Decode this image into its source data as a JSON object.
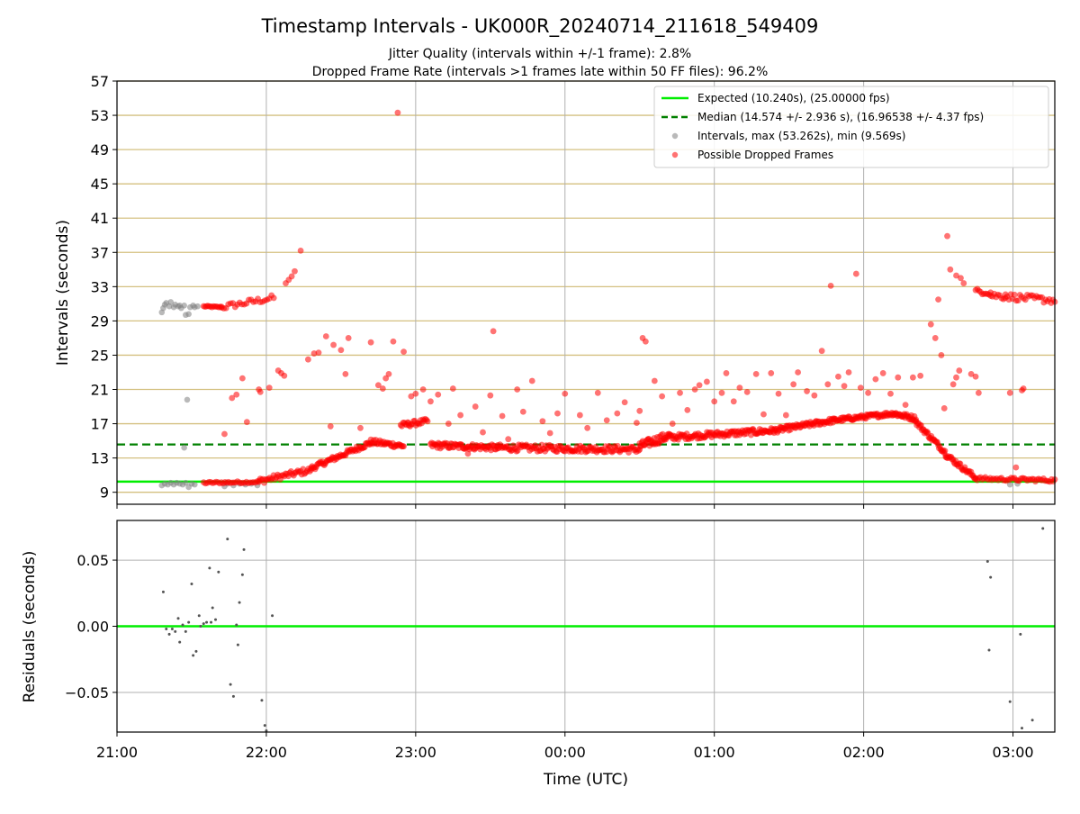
{
  "figure": {
    "title": "Timestamp Intervals - UK000R_20240714_211618_549409",
    "subtitle_line1": "Jitter Quality (intervals within +/-1 frame): 2.8%",
    "subtitle_line2": "Dropped Frame Rate (intervals >1 frames late within 50 FF files): 96.2%",
    "xlabel": "Time (UTC)"
  },
  "colors": {
    "expected": "#00ee00",
    "median": "#008000",
    "intervals": "#808080",
    "dropped": "#ff0000",
    "hgrid_top": "#d4c080",
    "grid": "#b0b0b0",
    "residual_points": "#555555"
  },
  "chart_data": [
    {
      "type": "scatter",
      "panel": "top",
      "ylabel": "Intervals (seconds)",
      "ylim": [
        7.6,
        57
      ],
      "yticks": [
        9,
        13,
        17,
        21,
        25,
        29,
        33,
        37,
        41,
        45,
        49,
        53,
        57
      ],
      "xlim_hours": [
        21.0,
        27.28
      ],
      "xticks_hours": [
        21,
        22,
        23,
        24,
        25,
        26,
        27
      ],
      "xtick_labels": [
        "21:00",
        "22:00",
        "23:00",
        "00:00",
        "01:00",
        "02:00",
        "03:00"
      ],
      "grid": "both",
      "legend_position": "upper right",
      "legend": {
        "expected": "Expected (10.240s), (25.00000 fps)",
        "median": "Median (14.574 +/- 2.936 s), (16.96538 +/- 4.37 fps)",
        "intervals": "Intervals, max (53.262s), min (9.569s)",
        "dropped": "Possible Dropped Frames"
      },
      "expected_line": 10.24,
      "median_line": 14.574,
      "intervals_gray": [
        [
          21.3,
          30.0
        ],
        [
          21.31,
          30.5
        ],
        [
          21.32,
          30.9
        ],
        [
          21.33,
          31.1
        ],
        [
          21.35,
          30.7
        ],
        [
          21.36,
          31.2
        ],
        [
          21.38,
          30.6
        ],
        [
          21.39,
          30.9
        ],
        [
          21.41,
          30.7
        ],
        [
          21.42,
          30.8
        ],
        [
          21.43,
          30.5
        ],
        [
          21.45,
          30.8
        ],
        [
          21.46,
          29.7
        ],
        [
          21.48,
          29.8
        ],
        [
          21.49,
          30.6
        ],
        [
          21.51,
          30.8
        ],
        [
          21.52,
          30.6
        ],
        [
          21.54,
          30.7
        ],
        [
          21.47,
          19.8
        ],
        [
          21.45,
          14.2
        ],
        [
          21.3,
          9.8
        ],
        [
          21.32,
          10.0
        ],
        [
          21.34,
          9.9
        ],
        [
          21.36,
          10.1
        ],
        [
          21.38,
          9.9
        ],
        [
          21.4,
          10.1
        ],
        [
          21.42,
          10.0
        ],
        [
          21.44,
          9.9
        ],
        [
          21.46,
          10.1
        ],
        [
          21.48,
          9.6
        ],
        [
          21.5,
          10.0
        ],
        [
          21.52,
          9.9
        ],
        [
          21.72,
          9.7
        ],
        [
          21.74,
          10.0
        ],
        [
          21.78,
          9.8
        ],
        [
          21.82,
          10.0
        ],
        [
          21.86,
          9.9
        ],
        [
          21.9,
          10.0
        ],
        [
          21.94,
          9.8
        ],
        [
          26.98,
          9.9
        ],
        [
          27.03,
          10.0
        ]
      ],
      "dropped_series": [
        {
          "t0": 21.58,
          "t1": 21.7,
          "y0": 30.7,
          "y1": 30.6,
          "n": 14,
          "jitter": 0.08
        },
        {
          "t0": 21.7,
          "t1": 22.05,
          "y0": 30.6,
          "y1": 31.7,
          "n": 24,
          "jitter": 0.35
        },
        {
          "t0": 21.58,
          "t1": 21.95,
          "y0": 10.1,
          "y1": 10.2,
          "n": 32,
          "jitter": 0.12
        },
        {
          "t0": 21.95,
          "t1": 22.3,
          "y0": 10.3,
          "y1": 11.6,
          "n": 40,
          "jitter": 0.35
        },
        {
          "t0": 22.3,
          "t1": 22.7,
          "y0": 11.8,
          "y1": 14.8,
          "n": 60,
          "jitter": 0.3
        },
        {
          "t0": 22.7,
          "t1": 22.92,
          "y0": 14.9,
          "y1": 14.4,
          "n": 34,
          "jitter": 0.3
        },
        {
          "t0": 22.9,
          "t1": 23.08,
          "y0": 16.8,
          "y1": 17.3,
          "n": 24,
          "jitter": 0.3
        },
        {
          "t0": 23.1,
          "t1": 23.55,
          "y0": 14.5,
          "y1": 14.2,
          "n": 70,
          "jitter": 0.35
        },
        {
          "t0": 23.55,
          "t1": 24.5,
          "y0": 14.2,
          "y1": 14.0,
          "n": 130,
          "jitter": 0.4
        },
        {
          "t0": 24.5,
          "t1": 24.7,
          "y0": 14.4,
          "y1": 15.6,
          "n": 40,
          "jitter": 0.5
        },
        {
          "t0": 24.7,
          "t1": 25.4,
          "y0": 15.4,
          "y1": 16.2,
          "n": 110,
          "jitter": 0.35
        },
        {
          "t0": 25.4,
          "t1": 25.8,
          "y0": 16.2,
          "y1": 17.4,
          "n": 70,
          "jitter": 0.3
        },
        {
          "t0": 25.8,
          "t1": 26.2,
          "y0": 17.4,
          "y1": 18.2,
          "n": 70,
          "jitter": 0.25
        },
        {
          "t0": 26.2,
          "t1": 26.35,
          "y0": 18.2,
          "y1": 17.6,
          "n": 30,
          "jitter": 0.3
        },
        {
          "t0": 26.35,
          "t1": 26.55,
          "y0": 17.2,
          "y1": 13.6,
          "n": 36,
          "jitter": 0.3
        },
        {
          "t0": 26.55,
          "t1": 26.75,
          "y0": 13.4,
          "y1": 10.7,
          "n": 34,
          "jitter": 0.3
        },
        {
          "t0": 26.75,
          "t1": 27.28,
          "y0": 10.6,
          "y1": 10.4,
          "n": 50,
          "jitter": 0.2
        },
        {
          "t0": 26.75,
          "t1": 26.85,
          "y0": 32.5,
          "y1": 32.3,
          "n": 10,
          "jitter": 0.3
        },
        {
          "t0": 26.85,
          "t1": 27.28,
          "y0": 32.0,
          "y1": 31.4,
          "n": 36,
          "jitter": 0.4
        }
      ],
      "dropped_points": [
        [
          21.72,
          15.8
        ],
        [
          21.77,
          20.0
        ],
        [
          21.8,
          20.4
        ],
        [
          21.84,
          22.3
        ],
        [
          21.87,
          17.2
        ],
        [
          21.95,
          21.0
        ],
        [
          21.96,
          20.7
        ],
        [
          22.02,
          21.2
        ],
        [
          22.08,
          23.2
        ],
        [
          22.1,
          22.9
        ],
        [
          22.12,
          22.6
        ],
        [
          22.13,
          33.4
        ],
        [
          22.15,
          33.8
        ],
        [
          22.17,
          34.2
        ],
        [
          22.19,
          34.8
        ],
        [
          22.23,
          37.2
        ],
        [
          22.28,
          24.5
        ],
        [
          22.32,
          25.2
        ],
        [
          22.35,
          25.3
        ],
        [
          22.4,
          27.2
        ],
        [
          22.43,
          16.7
        ],
        [
          22.45,
          26.2
        ],
        [
          22.5,
          25.6
        ],
        [
          22.53,
          22.8
        ],
        [
          22.55,
          27.0
        ],
        [
          22.63,
          16.5
        ],
        [
          22.7,
          26.5
        ],
        [
          22.75,
          21.5
        ],
        [
          22.8,
          22.3
        ],
        [
          22.78,
          21.1
        ],
        [
          22.82,
          22.8
        ],
        [
          22.85,
          26.6
        ],
        [
          22.88,
          53.3
        ],
        [
          22.92,
          25.4
        ],
        [
          22.95,
          17.1
        ],
        [
          22.97,
          20.2
        ],
        [
          23.0,
          20.5
        ],
        [
          23.05,
          21.0
        ],
        [
          23.1,
          19.6
        ],
        [
          23.15,
          20.4
        ],
        [
          23.22,
          17.0
        ],
        [
          23.25,
          21.1
        ],
        [
          23.3,
          18.0
        ],
        [
          23.35,
          13.5
        ],
        [
          23.4,
          19.0
        ],
        [
          23.45,
          16.0
        ],
        [
          23.5,
          20.3
        ],
        [
          23.52,
          27.8
        ],
        [
          23.58,
          17.9
        ],
        [
          23.62,
          15.2
        ],
        [
          23.68,
          21.0
        ],
        [
          23.72,
          18.4
        ],
        [
          23.78,
          22.0
        ],
        [
          23.85,
          17.3
        ],
        [
          23.9,
          15.9
        ],
        [
          23.95,
          18.2
        ],
        [
          24.0,
          20.5
        ],
        [
          24.05,
          13.8
        ],
        [
          24.1,
          18.0
        ],
        [
          24.15,
          16.5
        ],
        [
          24.22,
          20.6
        ],
        [
          24.28,
          17.4
        ],
        [
          24.35,
          18.2
        ],
        [
          24.4,
          19.5
        ],
        [
          24.48,
          17.1
        ],
        [
          24.5,
          18.5
        ],
        [
          24.52,
          27.0
        ],
        [
          24.54,
          26.6
        ],
        [
          24.6,
          22.0
        ],
        [
          24.65,
          20.2
        ],
        [
          24.72,
          17.0
        ],
        [
          24.77,
          20.6
        ],
        [
          24.82,
          18.6
        ],
        [
          24.87,
          21.0
        ],
        [
          24.9,
          21.5
        ],
        [
          24.95,
          21.9
        ],
        [
          25.0,
          19.6
        ],
        [
          25.05,
          20.6
        ],
        [
          25.08,
          22.9
        ],
        [
          25.13,
          19.6
        ],
        [
          25.17,
          21.2
        ],
        [
          25.22,
          20.7
        ],
        [
          25.28,
          22.8
        ],
        [
          25.33,
          18.1
        ],
        [
          25.38,
          22.9
        ],
        [
          25.43,
          20.5
        ],
        [
          25.48,
          18.0
        ],
        [
          25.53,
          21.6
        ],
        [
          25.56,
          23.0
        ],
        [
          25.62,
          20.8
        ],
        [
          25.67,
          20.3
        ],
        [
          25.72,
          25.5
        ],
        [
          25.76,
          21.6
        ],
        [
          25.78,
          33.1
        ],
        [
          25.83,
          22.5
        ],
        [
          25.87,
          21.4
        ],
        [
          25.9,
          23.0
        ],
        [
          25.95,
          34.5
        ],
        [
          25.98,
          21.2
        ],
        [
          26.03,
          20.6
        ],
        [
          26.08,
          22.2
        ],
        [
          26.13,
          22.9
        ],
        [
          26.18,
          20.5
        ],
        [
          26.23,
          22.4
        ],
        [
          26.28,
          19.2
        ],
        [
          26.33,
          22.4
        ],
        [
          26.38,
          22.6
        ],
        [
          26.45,
          28.6
        ],
        [
          26.48,
          27.0
        ],
        [
          26.5,
          31.5
        ],
        [
          26.52,
          25.0
        ],
        [
          26.54,
          18.8
        ],
        [
          26.56,
          38.9
        ],
        [
          26.58,
          35.0
        ],
        [
          26.62,
          34.3
        ],
        [
          26.65,
          34.0
        ],
        [
          26.67,
          33.4
        ],
        [
          26.6,
          21.6
        ],
        [
          26.62,
          22.4
        ],
        [
          26.64,
          23.2
        ],
        [
          26.72,
          22.8
        ],
        [
          26.75,
          22.5
        ],
        [
          26.77,
          20.6
        ],
        [
          26.95,
          32.1
        ],
        [
          26.98,
          20.6
        ],
        [
          27.02,
          11.9
        ],
        [
          27.06,
          20.9
        ],
        [
          27.07,
          21.1
        ]
      ]
    },
    {
      "type": "scatter",
      "panel": "bottom",
      "ylabel": "Residuals (seconds)",
      "ylim": [
        -0.08,
        0.08
      ],
      "yticks": [
        -0.05,
        0.0,
        0.05
      ],
      "ytick_labels": [
        "−0.05",
        "0.00",
        "0.05"
      ],
      "xlim_hours": [
        21.0,
        27.28
      ],
      "xticks_hours": [
        21,
        22,
        23,
        24,
        25,
        26,
        27
      ],
      "xtick_labels": [
        "21:00",
        "22:00",
        "23:00",
        "00:00",
        "01:00",
        "02:00",
        "03:00"
      ],
      "grid": "both",
      "zero_line": 0.0,
      "points": [
        [
          21.31,
          0.026
        ],
        [
          21.33,
          -0.002
        ],
        [
          21.35,
          -0.006
        ],
        [
          21.37,
          -0.002
        ],
        [
          21.39,
          -0.004
        ],
        [
          21.41,
          0.006
        ],
        [
          21.42,
          -0.012
        ],
        [
          21.44,
          0.001
        ],
        [
          21.46,
          -0.004
        ],
        [
          21.48,
          0.003
        ],
        [
          21.5,
          0.032
        ],
        [
          21.51,
          -0.022
        ],
        [
          21.53,
          -0.019
        ],
        [
          21.55,
          0.008
        ],
        [
          21.56,
          0.0
        ],
        [
          21.58,
          0.002
        ],
        [
          21.6,
          0.003
        ],
        [
          21.62,
          0.044
        ],
        [
          21.63,
          0.003
        ],
        [
          21.64,
          0.014
        ],
        [
          21.66,
          0.005
        ],
        [
          21.68,
          0.041
        ],
        [
          21.74,
          0.066
        ],
        [
          21.76,
          -0.044
        ],
        [
          21.78,
          -0.053
        ],
        [
          21.8,
          0.001
        ],
        [
          21.81,
          -0.014
        ],
        [
          21.82,
          0.018
        ],
        [
          21.84,
          0.039
        ],
        [
          21.85,
          0.058
        ],
        [
          21.97,
          -0.056
        ],
        [
          21.99,
          -0.075
        ],
        [
          22.0,
          -0.079
        ],
        [
          22.04,
          0.008
        ],
        [
          26.83,
          0.049
        ],
        [
          26.84,
          -0.018
        ],
        [
          26.85,
          0.037
        ],
        [
          26.98,
          -0.057
        ],
        [
          27.05,
          -0.006
        ],
        [
          27.06,
          -0.077
        ],
        [
          27.13,
          -0.071
        ],
        [
          27.2,
          0.074
        ]
      ]
    }
  ]
}
